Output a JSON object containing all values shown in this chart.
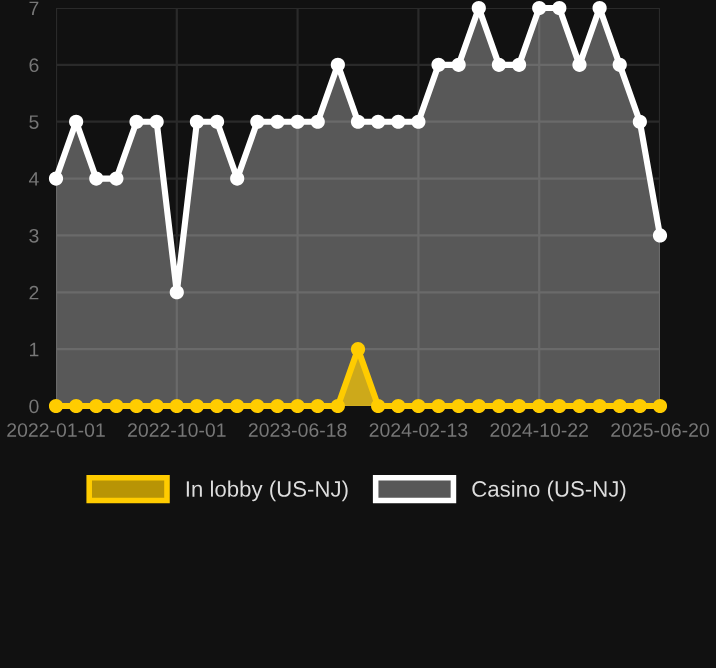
{
  "chart_data": {
    "type": "area",
    "categories": [
      "2022-01-01",
      null,
      null,
      null,
      null,
      null,
      "2022-10-01",
      null,
      null,
      null,
      null,
      null,
      "2023-06-18",
      null,
      null,
      null,
      null,
      null,
      "2024-02-13",
      null,
      null,
      null,
      null,
      null,
      "2024-10-22",
      null,
      null,
      null,
      null,
      null,
      "2025-06-20"
    ],
    "series": [
      {
        "name": "In lobby (US-NJ)",
        "color": "#ffcc00",
        "values": [
          0,
          0,
          0,
          0,
          0,
          0,
          0,
          0,
          0,
          0,
          0,
          0,
          0,
          0,
          0,
          1,
          0,
          0,
          0,
          0,
          0,
          0,
          0,
          0,
          0,
          0,
          0,
          0,
          0,
          0,
          0
        ]
      },
      {
        "name": "Casino (US-NJ)",
        "color": "#ffffff",
        "values": [
          4,
          5,
          4,
          4,
          5,
          5,
          2,
          5,
          5,
          4,
          5,
          5,
          5,
          5,
          6,
          5,
          5,
          5,
          5,
          6,
          6,
          7,
          6,
          6,
          7,
          7,
          6,
          7,
          6,
          5,
          3
        ]
      }
    ],
    "ylim": [
      0,
      7
    ],
    "yticks": [
      0,
      1,
      2,
      3,
      4,
      5,
      6,
      7
    ],
    "grid": true,
    "legend": "bottom",
    "marker": "circle",
    "line_style": "solid"
  }
}
